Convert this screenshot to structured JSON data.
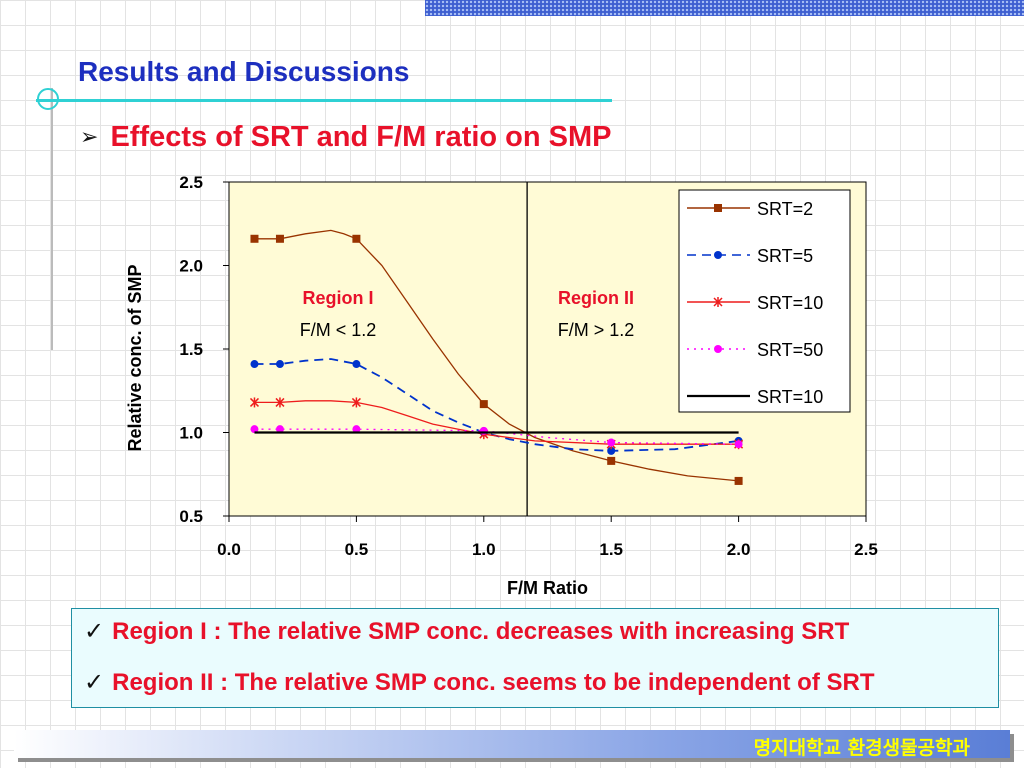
{
  "slide": {
    "title": "Results and Discussions",
    "subtitle": "Effects of SRT and F/M ratio on SMP",
    "subtitle_bullet": "➢",
    "footer": "명지대학교 환경생물공학과",
    "notes": [
      "Region I  : The relative SMP conc. decreases with increasing SRT",
      "Region II : The relative SMP conc. seems to be independent of SRT"
    ],
    "note_bullet": "✓",
    "colors": {
      "title": "#1d2fbf",
      "subtitle": "#e8112a",
      "plot_background": "#fffbd6",
      "deco_line": "#2fd1d4"
    }
  },
  "chart_data": {
    "type": "line",
    "xlabel": "F/M Ratio",
    "ylabel": "Relative conc. of SMP",
    "xlim": [
      0.0,
      2.5
    ],
    "ylim": [
      0.5,
      2.5
    ],
    "xticks": [
      "0.0",
      "0.5",
      "1.0",
      "1.5",
      "2.0",
      "2.5"
    ],
    "yticks": [
      "0.5",
      "1.0",
      "1.5",
      "2.0",
      "2.5"
    ],
    "divider_x": 1.17,
    "regions": [
      {
        "name": "Region I",
        "condition": "F/M < 1.2"
      },
      {
        "name": "Region II",
        "condition": "F/M > 1.2"
      }
    ],
    "legend_position": "top-right",
    "series": [
      {
        "name": "SRT=2",
        "color": "#993300",
        "marker": "square",
        "dash": "solid",
        "points": [
          [
            0.1,
            2.16
          ],
          [
            0.2,
            2.16
          ],
          [
            0.5,
            2.16
          ],
          [
            1.0,
            1.17
          ],
          [
            1.5,
            0.83
          ],
          [
            2.0,
            0.71
          ]
        ],
        "curve": [
          [
            0.1,
            2.16
          ],
          [
            0.2,
            2.16
          ],
          [
            0.3,
            2.19
          ],
          [
            0.4,
            2.21
          ],
          [
            0.45,
            2.19
          ],
          [
            0.5,
            2.16
          ],
          [
            0.6,
            2.0
          ],
          [
            0.7,
            1.78
          ],
          [
            0.8,
            1.56
          ],
          [
            0.9,
            1.35
          ],
          [
            1.0,
            1.17
          ],
          [
            1.1,
            1.05
          ],
          [
            1.2,
            0.97
          ],
          [
            1.35,
            0.89
          ],
          [
            1.5,
            0.83
          ],
          [
            1.65,
            0.78
          ],
          [
            1.8,
            0.74
          ],
          [
            2.0,
            0.71
          ]
        ]
      },
      {
        "name": "SRT=5",
        "color": "#0033cc",
        "marker": "circle",
        "dash": "dashed",
        "points": [
          [
            0.1,
            1.41
          ],
          [
            0.2,
            1.41
          ],
          [
            0.5,
            1.41
          ],
          [
            1.0,
            1.0
          ],
          [
            1.5,
            0.89
          ],
          [
            2.0,
            0.95
          ]
        ],
        "curve": [
          [
            0.1,
            1.41
          ],
          [
            0.2,
            1.41
          ],
          [
            0.3,
            1.43
          ],
          [
            0.4,
            1.44
          ],
          [
            0.5,
            1.41
          ],
          [
            0.6,
            1.33
          ],
          [
            0.7,
            1.23
          ],
          [
            0.8,
            1.13
          ],
          [
            0.9,
            1.06
          ],
          [
            1.0,
            1.0
          ],
          [
            1.1,
            0.96
          ],
          [
            1.2,
            0.93
          ],
          [
            1.35,
            0.9
          ],
          [
            1.5,
            0.89
          ],
          [
            1.75,
            0.9
          ],
          [
            2.0,
            0.95
          ]
        ]
      },
      {
        "name": "SRT=10",
        "color": "#ee1c1c",
        "marker": "asterisk",
        "dash": "solid",
        "points": [
          [
            0.1,
            1.18
          ],
          [
            0.2,
            1.18
          ],
          [
            0.5,
            1.18
          ],
          [
            1.0,
            0.99
          ],
          [
            1.5,
            0.93
          ],
          [
            2.0,
            0.93
          ]
        ],
        "curve": [
          [
            0.1,
            1.18
          ],
          [
            0.2,
            1.18
          ],
          [
            0.3,
            1.19
          ],
          [
            0.4,
            1.19
          ],
          [
            0.5,
            1.18
          ],
          [
            0.6,
            1.15
          ],
          [
            0.7,
            1.1
          ],
          [
            0.8,
            1.05
          ],
          [
            0.9,
            1.02
          ],
          [
            1.0,
            0.99
          ],
          [
            1.2,
            0.95
          ],
          [
            1.5,
            0.93
          ],
          [
            2.0,
            0.93
          ]
        ]
      },
      {
        "name": "SRT=50",
        "color": "#ff00ff",
        "marker": "circle",
        "dash": "dotted",
        "points": [
          [
            0.1,
            1.02
          ],
          [
            0.2,
            1.02
          ],
          [
            0.5,
            1.02
          ],
          [
            1.0,
            1.01
          ],
          [
            1.5,
            0.94
          ],
          [
            2.0,
            0.93
          ]
        ],
        "curve": [
          [
            0.1,
            1.02
          ],
          [
            0.2,
            1.02
          ],
          [
            0.5,
            1.02
          ],
          [
            1.0,
            1.01
          ],
          [
            1.25,
            0.97
          ],
          [
            1.5,
            0.94
          ],
          [
            2.0,
            0.93
          ]
        ]
      },
      {
        "name": "SRT=10",
        "color": "#000000",
        "marker": "none",
        "dash": "solid",
        "points": [],
        "curve": [
          [
            0.1,
            1.0
          ],
          [
            2.0,
            1.0
          ]
        ]
      }
    ]
  }
}
